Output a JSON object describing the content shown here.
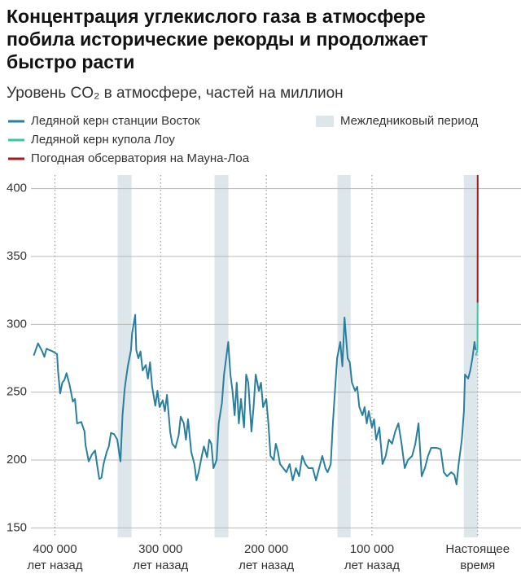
{
  "chart_data": {
    "type": "line",
    "title": [
      "Концентрация углекислого газа в атмосфере",
      "побила исторические рекорды и продолжает",
      "быстро расти"
    ],
    "subtitle": "Уровень CO₂ в атмосфере, частей на миллион",
    "xlim": [
      425000,
      -41000
    ],
    "ylim": [
      143,
      410
    ],
    "yticks": [
      150,
      200,
      250,
      300,
      350,
      400
    ],
    "xticks": [
      {
        "value": 400000,
        "label": [
          "400 000",
          "лет назад"
        ]
      },
      {
        "value": 300000,
        "label": [
          "300 000",
          "лет назад"
        ]
      },
      {
        "value": 200000,
        "label": [
          "200 000",
          "лет назад"
        ]
      },
      {
        "value": 100000,
        "label": [
          "100 000",
          "лет назад"
        ]
      },
      {
        "value": 0,
        "label": [
          "Настоящее",
          "время"
        ]
      }
    ],
    "grid": true,
    "bands": {
      "name": "Межледниковый период",
      "color": "#dde6ea",
      "ranges": [
        [
          340600,
          327500
        ],
        [
          249000,
          235800
        ],
        [
          132600,
          120200
        ],
        [
          13100,
          0
        ]
      ]
    },
    "series": [
      {
        "name": "Ледяной керн станции Восток",
        "color": "#2a7f9e",
        "x": [
          420000,
          416000,
          412000,
          410000,
          408000,
          402000,
          398000,
          397000,
          395000,
          393000,
          391000,
          389000,
          386000,
          383000,
          381000,
          379000,
          375000,
          372000,
          371000,
          368000,
          365000,
          362000,
          360000,
          358000,
          356000,
          354000,
          351000,
          349000,
          347000,
          344000,
          341000,
          339000,
          338000,
          336000,
          334000,
          333000,
          331000,
          328000,
          327000,
          324000,
          323000,
          321000,
          319000,
          317000,
          314000,
          312000,
          310000,
          308000,
          305000,
          303000,
          301000,
          298000,
          296000,
          294000,
          291000,
          289000,
          286000,
          283000,
          281000,
          278000,
          276000,
          274000,
          271000,
          268000,
          266000,
          264000,
          261000,
          259000,
          256000,
          254000,
          252000,
          250000,
          247000,
          245000,
          242000,
          240000,
          238000,
          236000,
          234000,
          232000,
          230000,
          228000,
          226000,
          224000,
          221000,
          219000,
          217000,
          214000,
          212000,
          210000,
          207000,
          205000,
          203000,
          200000,
          198000,
          196000,
          193000,
          191000,
          189000,
          187000,
          184000,
          181000,
          178000,
          175000,
          172000,
          169000,
          166000,
          163000,
          160000,
          156000,
          153000,
          150000,
          147000,
          144000,
          142000,
          139000,
          137000,
          135000,
          133000,
          130000,
          128000,
          126000,
          123000,
          121000,
          119000,
          116000,
          114000,
          112000,
          109000,
          107000,
          105000,
          103000,
          100000,
          98000,
          96000,
          93000,
          90000,
          87000,
          84000,
          81000,
          78000,
          75000,
          72000,
          69000,
          66000,
          62000,
          59000,
          56000,
          53000,
          50000,
          47000,
          44000,
          39000,
          35000,
          32000,
          29000,
          25000,
          22000,
          20000,
          18000,
          15000,
          13000,
          12000,
          9000,
          7000,
          5000,
          3000,
          2000
        ],
        "values": [
          277,
          286,
          280,
          276,
          282,
          280,
          278,
          265,
          249,
          257,
          259,
          264,
          255,
          243,
          245,
          227,
          228,
          221,
          211,
          199,
          204,
          207,
          196,
          186,
          187,
          197,
          206,
          210,
          220,
          219,
          215,
          204,
          199,
          233,
          252,
          258,
          269,
          281,
          293,
          307,
          281,
          275,
          280,
          266,
          270,
          260,
          272,
          254,
          240,
          251,
          239,
          244,
          236,
          248,
          221,
          212,
          209,
          218,
          232,
          227,
          215,
          230,
          206,
          197,
          185,
          191,
          203,
          210,
          202,
          215,
          212,
          194,
          200,
          227,
          242,
          263,
          275,
          287,
          263,
          251,
          233,
          257,
          227,
          245,
          224,
          263,
          257,
          221,
          239,
          263,
          251,
          257,
          239,
          245,
          227,
          203,
          200,
          212,
          206,
          197,
          194,
          191,
          197,
          185,
          194,
          188,
          203,
          197,
          194,
          194,
          185,
          194,
          203,
          194,
          191,
          197,
          227,
          251,
          275,
          287,
          269,
          305,
          275,
          272,
          257,
          251,
          254,
          239,
          233,
          239,
          227,
          236,
          224,
          230,
          215,
          224,
          197,
          203,
          215,
          212,
          221,
          227,
          212,
          194,
          200,
          203,
          212,
          227,
          188,
          194,
          203,
          209,
          209,
          208,
          191,
          188,
          191,
          189,
          182,
          197,
          215,
          236,
          263,
          260,
          266,
          275,
          287,
          281
        ]
      },
      {
        "name": "Ледяной керн купола Лоу",
        "color": "#3cc4a0",
        "x": [
          2000,
          500,
          200,
          100,
          50,
          0
        ],
        "values": [
          277,
          280,
          282,
          290,
          310,
          316
        ]
      },
      {
        "name": "Погодная обсерватория на Мауна-Лоа",
        "color": "#a8161e",
        "x": [
          63,
          0
        ],
        "values": [
          316,
          410
        ]
      }
    ]
  }
}
